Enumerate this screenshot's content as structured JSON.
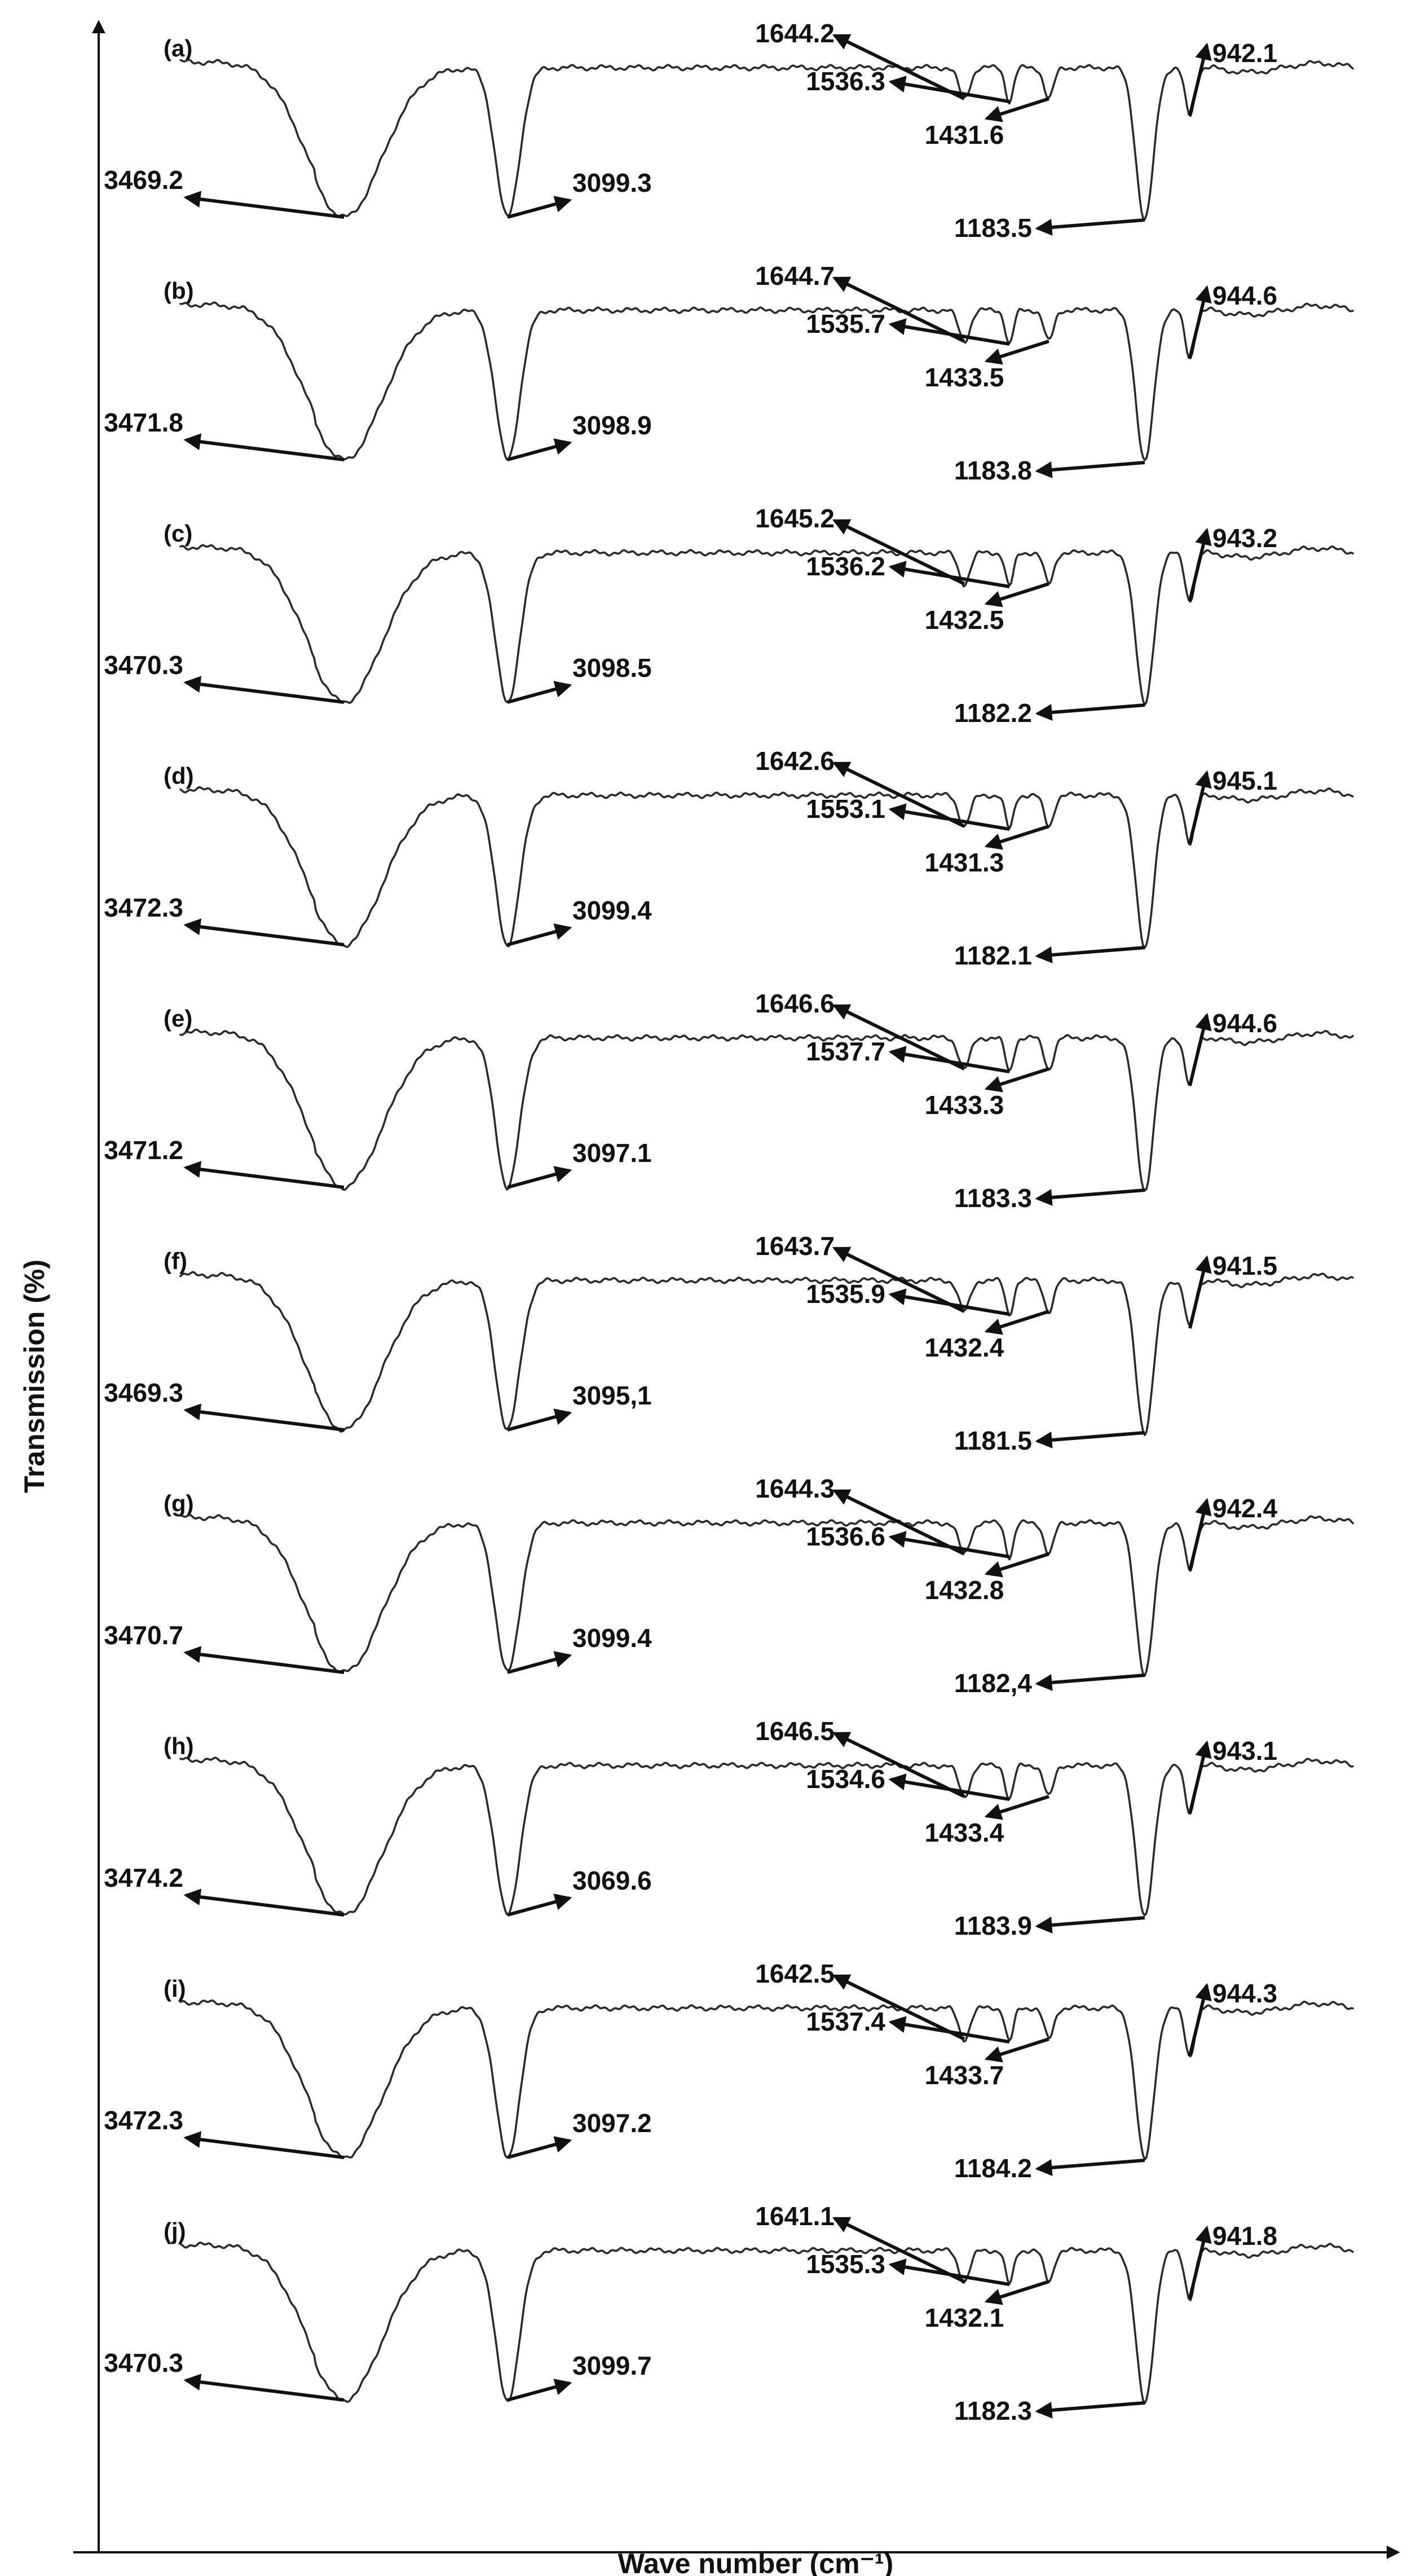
{
  "chart_data": {
    "type": "line",
    "title": "",
    "xlabel": "Wave number (cm⁻¹)",
    "ylabel": "Transmission (%)",
    "x_direction": "decreasing",
    "xlim": [
      4000,
      500
    ],
    "grid": false,
    "legend": "none",
    "series": [
      {
        "name": "(a)",
        "peaks": [
          {
            "value": 3469.2,
            "label": "3469.2"
          },
          {
            "value": 3099.3,
            "label": "3099.3"
          },
          {
            "value": 1644.2,
            "label": "1644.2"
          },
          {
            "value": 1536.3,
            "label": "1536.3"
          },
          {
            "value": 1431.6,
            "label": "1431.6"
          },
          {
            "value": 1183.5,
            "label": "1183.5"
          },
          {
            "value": 942.1,
            "label": "942.1"
          }
        ]
      },
      {
        "name": "(b)",
        "peaks": [
          {
            "value": 3471.8,
            "label": "3471.8"
          },
          {
            "value": 3098.9,
            "label": "3098.9"
          },
          {
            "value": 1644.7,
            "label": "1644.7"
          },
          {
            "value": 1535.7,
            "label": "1535.7"
          },
          {
            "value": 1433.5,
            "label": "1433.5"
          },
          {
            "value": 1183.8,
            "label": "1183.8"
          },
          {
            "value": 944.6,
            "label": "944.6"
          }
        ]
      },
      {
        "name": "(c)",
        "peaks": [
          {
            "value": 3470.3,
            "label": "3470.3"
          },
          {
            "value": 3098.5,
            "label": "3098.5"
          },
          {
            "value": 1645.2,
            "label": "1645.2"
          },
          {
            "value": 1536.2,
            "label": "1536.2"
          },
          {
            "value": 1432.5,
            "label": "1432.5"
          },
          {
            "value": 1182.2,
            "label": "1182.2"
          },
          {
            "value": 943.2,
            "label": "943.2"
          }
        ]
      },
      {
        "name": "(d)",
        "peaks": [
          {
            "value": 3472.3,
            "label": "3472.3"
          },
          {
            "value": 3099.4,
            "label": "3099.4"
          },
          {
            "value": 1642.6,
            "label": "1642.6"
          },
          {
            "value": 1553.1,
            "label": "1553.1"
          },
          {
            "value": 1431.3,
            "label": "1431.3"
          },
          {
            "value": 1182.1,
            "label": "1182.1"
          },
          {
            "value": 945.1,
            "label": "945.1"
          }
        ]
      },
      {
        "name": "(e)",
        "peaks": [
          {
            "value": 3471.2,
            "label": "3471.2"
          },
          {
            "value": 3097.1,
            "label": "3097.1"
          },
          {
            "value": 1646.6,
            "label": "1646.6"
          },
          {
            "value": 1537.7,
            "label": "1537.7"
          },
          {
            "value": 1433.3,
            "label": "1433.3"
          },
          {
            "value": 1183.3,
            "label": "1183.3"
          },
          {
            "value": 944.6,
            "label": "944.6"
          }
        ]
      },
      {
        "name": "(f)",
        "peaks": [
          {
            "value": 3469.3,
            "label": "3469.3"
          },
          {
            "value": 3095.1,
            "label": "3095,1"
          },
          {
            "value": 1643.7,
            "label": "1643.7"
          },
          {
            "value": 1535.9,
            "label": "1535.9"
          },
          {
            "value": 1432.4,
            "label": "1432.4"
          },
          {
            "value": 1181.5,
            "label": "1181.5"
          },
          {
            "value": 941.5,
            "label": "941.5"
          }
        ]
      },
      {
        "name": "(g)",
        "peaks": [
          {
            "value": 3470.7,
            "label": "3470.7"
          },
          {
            "value": 3099.4,
            "label": "3099.4"
          },
          {
            "value": 1644.3,
            "label": "1644.3"
          },
          {
            "value": 1536.6,
            "label": "1536.6"
          },
          {
            "value": 1432.8,
            "label": "1432.8"
          },
          {
            "value": 1182.4,
            "label": "1182,4"
          },
          {
            "value": 942.4,
            "label": "942.4"
          }
        ]
      },
      {
        "name": "(h)",
        "peaks": [
          {
            "value": 3474.2,
            "label": "3474.2"
          },
          {
            "value": 3069.6,
            "label": "3069.6"
          },
          {
            "value": 1646.5,
            "label": "1646.5"
          },
          {
            "value": 1534.6,
            "label": "1534.6"
          },
          {
            "value": 1433.4,
            "label": "1433.4"
          },
          {
            "value": 1183.9,
            "label": "1183.9"
          },
          {
            "value": 943.1,
            "label": "943.1"
          }
        ]
      },
      {
        "name": "(i)",
        "peaks": [
          {
            "value": 3472.3,
            "label": "3472.3"
          },
          {
            "value": 3097.2,
            "label": "3097.2"
          },
          {
            "value": 1642.5,
            "label": "1642.5"
          },
          {
            "value": 1537.4,
            "label": "1537.4"
          },
          {
            "value": 1433.7,
            "label": "1433.7"
          },
          {
            "value": 1184.2,
            "label": "1184.2"
          },
          {
            "value": 944.3,
            "label": "944.3"
          }
        ]
      },
      {
        "name": "(j)",
        "peaks": [
          {
            "value": 3470.3,
            "label": "3470.3"
          },
          {
            "value": 3099.7,
            "label": "3099.7"
          },
          {
            "value": 1641.1,
            "label": "1641.1"
          },
          {
            "value": 1535.3,
            "label": "1535.3"
          },
          {
            "value": 1432.1,
            "label": "1432.1"
          },
          {
            "value": 1182.3,
            "label": "1182.3"
          },
          {
            "value": 941.8,
            "label": "941.8"
          }
        ]
      }
    ]
  }
}
